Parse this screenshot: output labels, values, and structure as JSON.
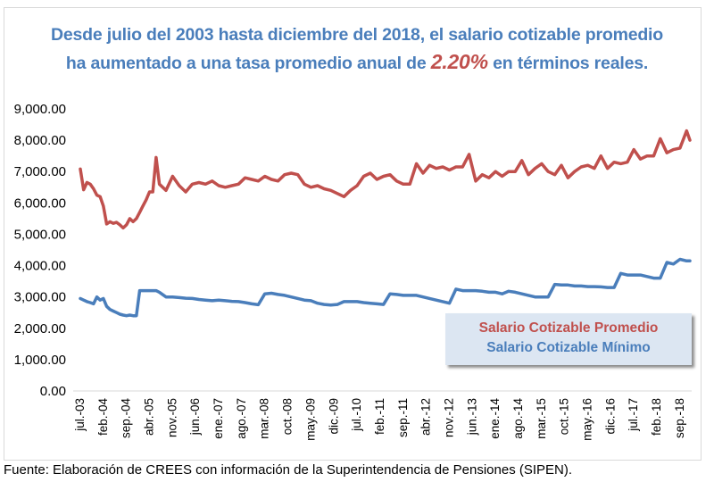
{
  "title": {
    "line1": "Desde julio del 2003 hasta diciembre del 2018, el salario cotizable promedio",
    "line2_pre": "ha aumentado a una tasa promedio anual de ",
    "line2_highlight": "2.20%",
    "line2_post": " en términos reales."
  },
  "source": "Fuente: Elaboración de CREES con información de la Superintendencia de Pensiones (SIPEN).",
  "colors": {
    "promedio": "#c0504d",
    "minimo": "#4a7ebb",
    "title": "#4a7ebb",
    "legend_bg": "#dce6f2"
  },
  "chart_data": {
    "type": "line",
    "title": "Desde julio del 2003 hasta diciembre del 2018, el salario cotizable promedio ha aumentado a una tasa promedio anual de 2.20% en términos reales.",
    "xlabel": "",
    "ylabel": "",
    "ylim": [
      0,
      9000
    ],
    "yticks": [
      "0.00",
      "1,000.00",
      "2,000.00",
      "3,000.00",
      "4,000.00",
      "5,000.00",
      "6,000.00",
      "7,000.00",
      "8,000.00",
      "9,000.00"
    ],
    "xticks": [
      "jul.-03",
      "feb.-04",
      "sep.-04",
      "abr.-05",
      "nov.-05",
      "jun.-06",
      "ene.-07",
      "ago.-07",
      "mar.-08",
      "oct.-08",
      "may.-09",
      "dic.-09",
      "jul.-10",
      "feb.-11",
      "sep.-11",
      "abr.-12",
      "nov.-12",
      "jun.-13",
      "ene.-14",
      "ago.-14",
      "mar.-15",
      "oct.-15",
      "may.-16",
      "dic.-16",
      "jul.-17",
      "feb.-18",
      "sep.-18"
    ],
    "x_range": [
      "jul.-03",
      "dic.-18"
    ],
    "grid": false,
    "legend_position": "bottom-right",
    "x_months": [
      0,
      1,
      2,
      3,
      4,
      5,
      6,
      7,
      8,
      9,
      10,
      11,
      12,
      13,
      14,
      15,
      16,
      17,
      18,
      19,
      20,
      21,
      22,
      23,
      24,
      26,
      28,
      30,
      32,
      34,
      36,
      38,
      40,
      42,
      44,
      46,
      48,
      50,
      52,
      54,
      56,
      58,
      60,
      62,
      64,
      66,
      68,
      70,
      72,
      74,
      76,
      78,
      80,
      82,
      84,
      86,
      88,
      90,
      92,
      94,
      96,
      98,
      100,
      102,
      104,
      106,
      108,
      110,
      112,
      114,
      116,
      118,
      120,
      122,
      124,
      126,
      128,
      130,
      132,
      134,
      136,
      138,
      140,
      142,
      144,
      146,
      148,
      150,
      152,
      154,
      156,
      158,
      160,
      162,
      164,
      166,
      168,
      170,
      172,
      174,
      176,
      178,
      180,
      182,
      184,
      185
    ],
    "series": [
      {
        "name": "Salario Cotizable Promedio",
        "color": "#c0504d",
        "values": [
          7080,
          6420,
          6650,
          6600,
          6450,
          6250,
          6200,
          5900,
          5330,
          5400,
          5350,
          5380,
          5300,
          5200,
          5300,
          5500,
          5400,
          5500,
          5700,
          5900,
          6100,
          6350,
          6350,
          7450,
          6600,
          6400,
          6850,
          6550,
          6350,
          6600,
          6650,
          6600,
          6700,
          6550,
          6500,
          6550,
          6600,
          6800,
          6750,
          6700,
          6850,
          6750,
          6700,
          6900,
          6950,
          6900,
          6600,
          6500,
          6550,
          6450,
          6400,
          6300,
          6200,
          6400,
          6550,
          6850,
          6950,
          6750,
          6850,
          6900,
          6700,
          6600,
          6600,
          7250,
          6950,
          7200,
          7100,
          7150,
          7050,
          7150,
          7150,
          7550,
          6700,
          6900,
          6800,
          7000,
          6850,
          7000,
          7000,
          7350,
          6900,
          7100,
          7250,
          7000,
          6900,
          7200,
          6800,
          7000,
          7150,
          7200,
          7100,
          7500,
          7100,
          7300,
          7250,
          7300,
          7700,
          7400,
          7500,
          7500,
          8050,
          7600,
          7700,
          7750,
          8300,
          8000
        ]
      },
      {
        "name": "Salario Cotizable Mínimo",
        "color": "#4a7ebb",
        "values": [
          2950,
          2900,
          2850,
          2820,
          2780,
          3000,
          2900,
          2950,
          2700,
          2600,
          2550,
          2500,
          2450,
          2420,
          2400,
          2420,
          2400,
          2400,
          3200,
          3200,
          3200,
          3200,
          3200,
          3200,
          3150,
          3000,
          3000,
          2980,
          2960,
          2950,
          2920,
          2900,
          2880,
          2900,
          2880,
          2860,
          2850,
          2820,
          2780,
          2750,
          3100,
          3120,
          3080,
          3050,
          3000,
          2950,
          2900,
          2880,
          2800,
          2760,
          2740,
          2760,
          2850,
          2850,
          2850,
          2820,
          2800,
          2780,
          2760,
          3100,
          3080,
          3050,
          3050,
          3050,
          3000,
          2950,
          2900,
          2850,
          2800,
          3250,
          3200,
          3200,
          3200,
          3180,
          3150,
          3150,
          3100,
          3180,
          3150,
          3100,
          3050,
          3000,
          3000,
          3000,
          3400,
          3380,
          3380,
          3350,
          3350,
          3330,
          3330,
          3320,
          3300,
          3300,
          3750,
          3700,
          3700,
          3700,
          3650,
          3600,
          3600,
          4100,
          4050,
          4200,
          4150,
          4150
        ]
      }
    ]
  },
  "legend": {
    "items": [
      "Salario Cotizable Promedio",
      "Salario Cotizable Mínimo"
    ]
  }
}
